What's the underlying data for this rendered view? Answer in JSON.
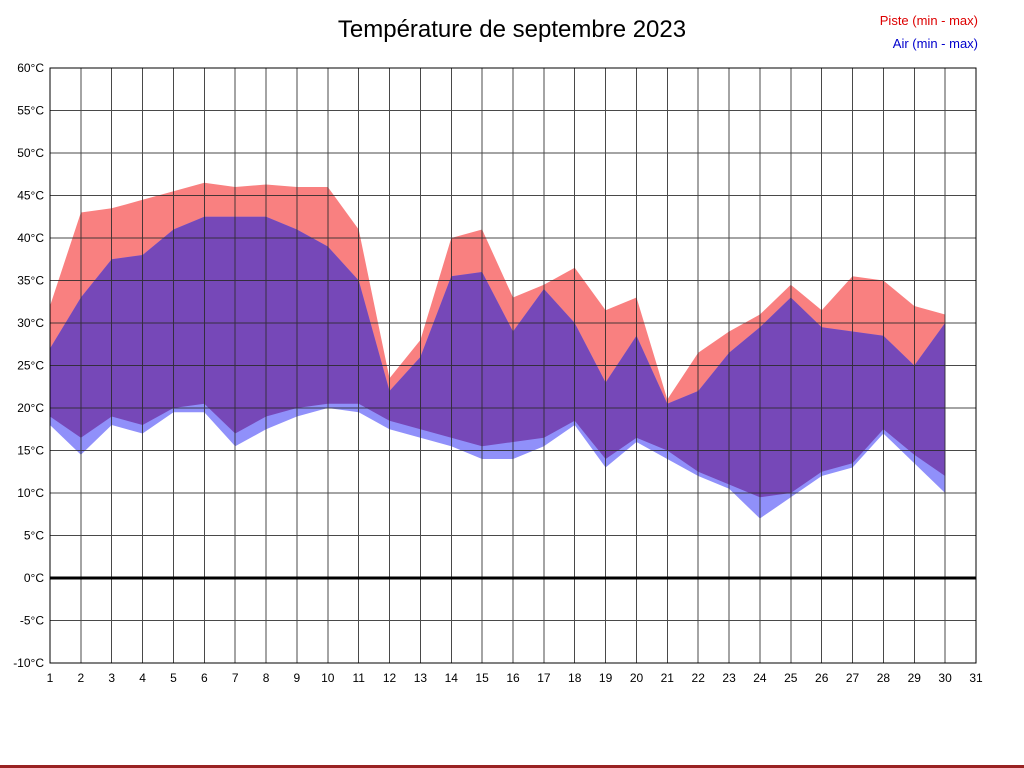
{
  "page": {
    "border_color": "#992222"
  },
  "chart_data": {
    "type": "area",
    "title": "Température de septembre 2023",
    "xlabel": "",
    "ylabel": "",
    "ylim": [
      -10,
      60
    ],
    "y_tick_step": 5,
    "y_tick_labels": [
      "60°C",
      "55°C",
      "50°C",
      "45°C",
      "40°C",
      "35°C",
      "30°C",
      "25°C",
      "20°C",
      "15°C",
      "10°C",
      "5°C",
      "0°C",
      "-5°C",
      "-10°C"
    ],
    "y_tick_values": [
      60,
      55,
      50,
      45,
      40,
      35,
      30,
      25,
      20,
      15,
      10,
      5,
      0,
      -5,
      -10
    ],
    "x_tick_labels": [
      "1",
      "2",
      "3",
      "4",
      "5",
      "6",
      "7",
      "8",
      "9",
      "10",
      "11",
      "12",
      "13",
      "14",
      "15",
      "16",
      "17",
      "18",
      "19",
      "20",
      "21",
      "22",
      "23",
      "24",
      "25",
      "26",
      "27",
      "28",
      "29",
      "30",
      "31"
    ],
    "x_tick_values": [
      1,
      2,
      3,
      4,
      5,
      6,
      7,
      8,
      9,
      10,
      11,
      12,
      13,
      14,
      15,
      16,
      17,
      18,
      19,
      20,
      21,
      22,
      23,
      24,
      25,
      26,
      27,
      28,
      29,
      30,
      31
    ],
    "x": [
      1,
      2,
      3,
      4,
      5,
      6,
      7,
      8,
      9,
      10,
      11,
      12,
      13,
      14,
      15,
      16,
      17,
      18,
      19,
      20,
      21,
      22,
      23,
      24,
      25,
      26,
      27,
      28,
      29,
      30
    ],
    "grid": true,
    "grid_color": "#2a2a2a",
    "zero_line_value": 0,
    "zero_line_color": "#000000",
    "overlap_fill": "#7648b8",
    "legend_position": "top-right",
    "series": [
      {
        "name": "Piste (min - max)",
        "label_color": "#dd0000",
        "fill": "#f98080",
        "max": [
          32,
          43,
          43.5,
          44.5,
          45.5,
          46.5,
          46,
          46.3,
          46,
          46,
          41,
          23.5,
          28,
          40,
          41,
          33,
          34.5,
          36.5,
          31.5,
          33,
          21,
          26.5,
          29,
          31,
          34.5,
          31.5,
          35.5,
          35,
          32,
          31
        ],
        "min": [
          19,
          16.5,
          19,
          18,
          20,
          20.5,
          17,
          19,
          20,
          20.5,
          20.5,
          18.5,
          17.5,
          16.5,
          15.5,
          16,
          16.5,
          18.5,
          14,
          16.5,
          15,
          12.5,
          11,
          9.5,
          10,
          12.5,
          13.5,
          17.5,
          14.5,
          12
        ]
      },
      {
        "name": "Air (min - max)",
        "label_color": "#0000cc",
        "fill": "#9090fa",
        "max": [
          27,
          33,
          37.5,
          38,
          41,
          42.5,
          42.5,
          42.5,
          41,
          39,
          35,
          22,
          26,
          35.5,
          36,
          29,
          34,
          30,
          23,
          28.5,
          20.5,
          22,
          26.5,
          29.5,
          33,
          29.5,
          29,
          28.5,
          25,
          30
        ],
        "min": [
          18,
          14.5,
          18,
          17,
          19.5,
          19.5,
          15.5,
          17.5,
          19,
          20,
          19.5,
          17.5,
          16.5,
          15.5,
          14,
          14,
          15.5,
          18,
          13,
          16,
          14,
          12,
          10.5,
          7,
          9.5,
          12,
          13,
          17,
          13.5,
          10
        ]
      }
    ]
  }
}
